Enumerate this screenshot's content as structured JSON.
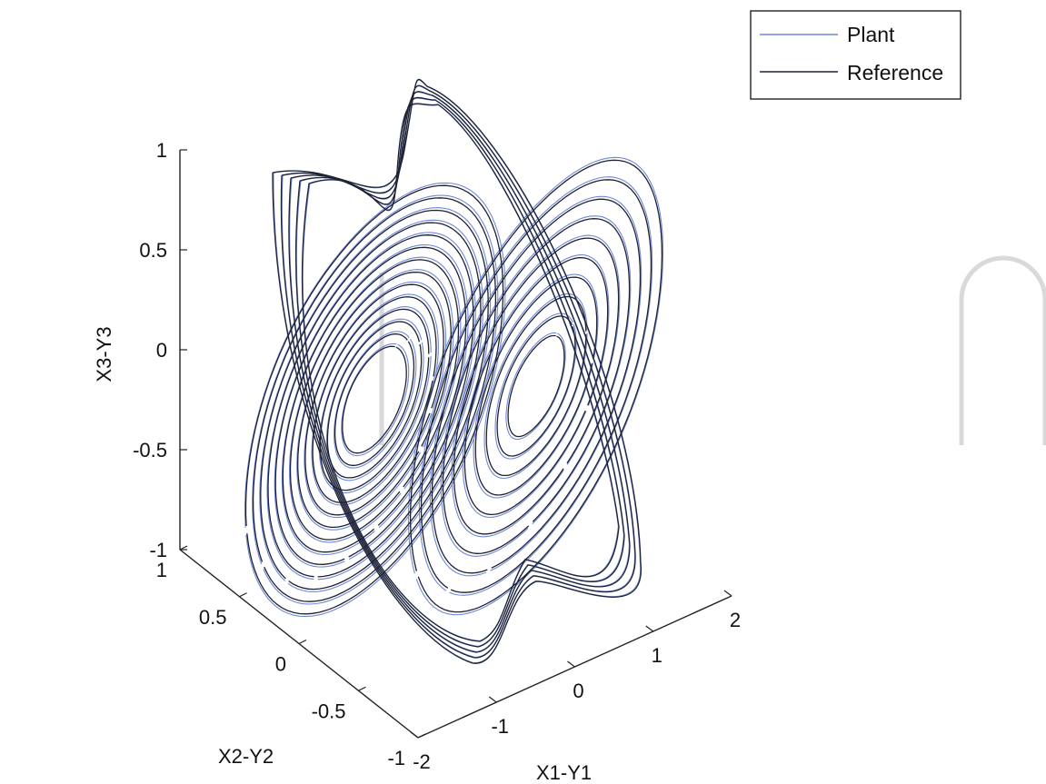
{
  "chart_data": {
    "type": "line",
    "projection": "3d",
    "xlabel": "X1-Y1",
    "ylabel": "X2-Y2",
    "zlabel": "X3-Y3",
    "xlim": [
      -2,
      2
    ],
    "ylim": [
      -1,
      1
    ],
    "zlim": [
      -1,
      1
    ],
    "xticks": [
      "-2",
      "-1",
      "0",
      "1",
      "2"
    ],
    "yticks": [
      "-1",
      "-0.5",
      "0",
      "0.5",
      "1"
    ],
    "zticks": [
      "-1",
      "-0.5",
      "0",
      "0.5",
      "1"
    ],
    "legend_position": "top-right",
    "grid": false,
    "series": [
      {
        "name": "Plant",
        "color": "#6f88d8"
      },
      {
        "name": "Reference",
        "color": "#1e2233"
      }
    ]
  }
}
